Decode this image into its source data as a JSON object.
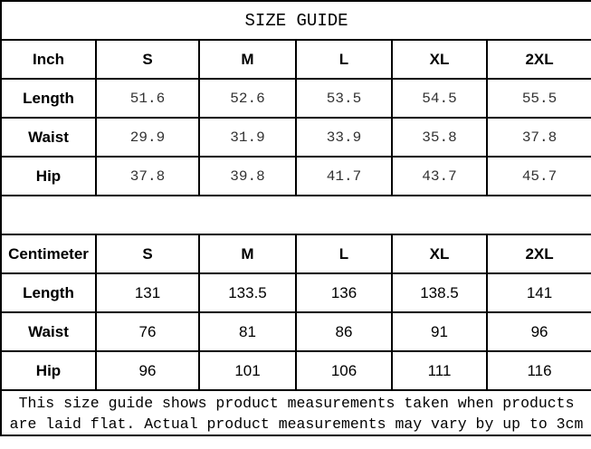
{
  "title": "SIZE GUIDE",
  "sizes": [
    "S",
    "M",
    "L",
    "XL",
    "2XL"
  ],
  "inch": {
    "unit_label": "Inch",
    "rows": [
      {
        "label": "Length",
        "values": [
          "51.6",
          "52.6",
          "53.5",
          "54.5",
          "55.5"
        ]
      },
      {
        "label": "Waist",
        "values": [
          "29.9",
          "31.9",
          "33.9",
          "35.8",
          "37.8"
        ]
      },
      {
        "label": "Hip",
        "values": [
          "37.8",
          "39.8",
          "41.7",
          "43.7",
          "45.7"
        ]
      }
    ]
  },
  "cm": {
    "unit_label": "Centimeter",
    "rows": [
      {
        "label": "Length",
        "values": [
          "131",
          "133.5",
          "136",
          "138.5",
          "141"
        ]
      },
      {
        "label": "Waist",
        "values": [
          "76",
          "81",
          "86",
          "91",
          "96"
        ]
      },
      {
        "label": "Hip",
        "values": [
          "96",
          "101",
          "106",
          "111",
          "116"
        ]
      }
    ]
  },
  "note": "This size guide shows product measurements taken when products are laid flat. Actual product measurements may vary by up to 3cm"
}
